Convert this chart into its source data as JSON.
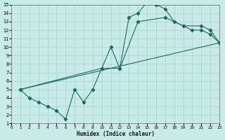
{
  "xlabel": "Humidex (Indice chaleur)",
  "xlim": [
    0,
    23
  ],
  "ylim": [
    1,
    15
  ],
  "xticks": [
    0,
    1,
    2,
    3,
    4,
    5,
    6,
    7,
    8,
    9,
    10,
    11,
    12,
    13,
    14,
    15,
    16,
    17,
    18,
    19,
    20,
    21,
    22,
    23
  ],
  "yticks": [
    1,
    2,
    3,
    4,
    5,
    6,
    7,
    8,
    9,
    10,
    11,
    12,
    13,
    14,
    15
  ],
  "bg_color": "#c8ebe8",
  "grid_color": "#a8d5d0",
  "line_color": "#1a6b60",
  "curve1_x": [
    1,
    2,
    3,
    4,
    5,
    6,
    7,
    8,
    9,
    10,
    11,
    12,
    13,
    14,
    15,
    16,
    17,
    18,
    19,
    20,
    21,
    22,
    23
  ],
  "curve1_y": [
    5,
    4,
    3.5,
    3,
    2.5,
    1.5,
    5,
    3.5,
    5,
    7.5,
    10,
    7.5,
    13.5,
    14,
    15.3,
    15,
    14.5,
    13,
    12.5,
    12,
    12,
    11.5,
    10.5
  ],
  "curve2_x": [
    1,
    10,
    12,
    14,
    17,
    19,
    21,
    22,
    23
  ],
  "curve2_y": [
    5,
    7.5,
    7.5,
    13,
    13.5,
    12.5,
    12.5,
    12,
    10.5
  ],
  "curve3_x": [
    1,
    23
  ],
  "curve3_y": [
    5,
    10.5
  ]
}
